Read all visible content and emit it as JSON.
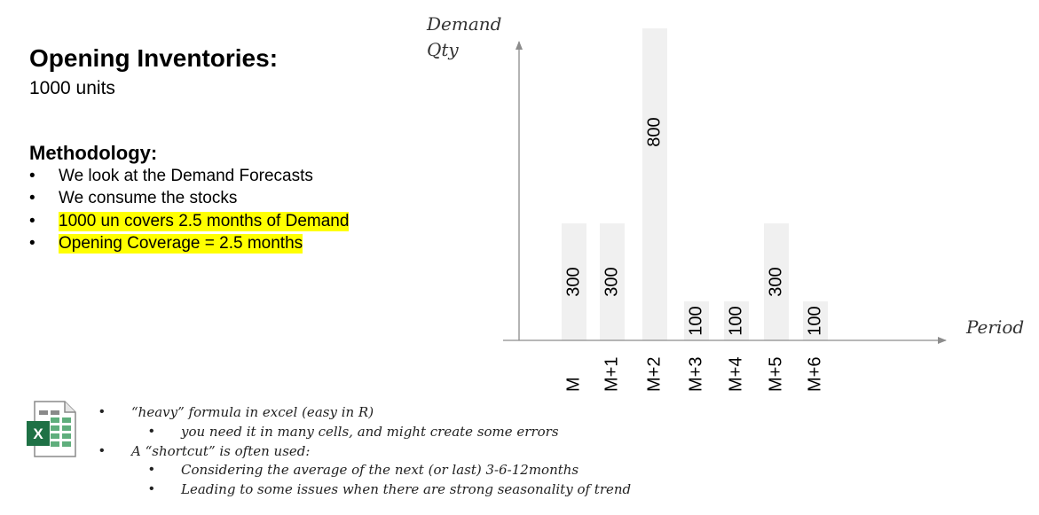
{
  "header": {
    "title": "Opening Inventories:",
    "subtitle": "1000 units"
  },
  "methodology": {
    "title": "Methodology:",
    "bullets": [
      {
        "text": "We look at the Demand Forecasts",
        "highlight": false
      },
      {
        "text": "We consume the stocks",
        "highlight": false
      },
      {
        "text": "1000 un covers 2.5 months of Demand",
        "highlight": true
      },
      {
        "text": "Opening Coverage = 2.5 months",
        "highlight": true
      }
    ],
    "bullet_symbol": "•"
  },
  "notes": {
    "icon": "excel-icon",
    "icon_letter": "X",
    "items": [
      {
        "text": "“heavy” formula in excel (easy in R)",
        "level": 1
      },
      {
        "text": "you need it in many cells, and might create some errors",
        "level": 2
      },
      {
        "text": "A “shortcut” is often used:",
        "level": 1
      },
      {
        "text": "Considering the average of the next (or last) 3-6-12months",
        "level": 2
      },
      {
        "text": "Leading to some issues when there are strong seasonality of trend",
        "level": 2
      }
    ]
  },
  "chart_data": {
    "type": "bar",
    "categories": [
      "M",
      "M+1",
      "M+2",
      "M+3",
      "M+4",
      "M+5",
      "M+6"
    ],
    "values": [
      300,
      300,
      800,
      100,
      100,
      300,
      100
    ],
    "ylabel_line1": "Demand",
    "ylabel_line2": "Qty",
    "xlabel": "Period",
    "ylim": [
      0,
      800
    ],
    "bar_color": "#f0f0f0",
    "axis_color": "#8c8c8c"
  },
  "colors": {
    "highlight": "#ffff00",
    "excel_green": "#1e7145"
  }
}
